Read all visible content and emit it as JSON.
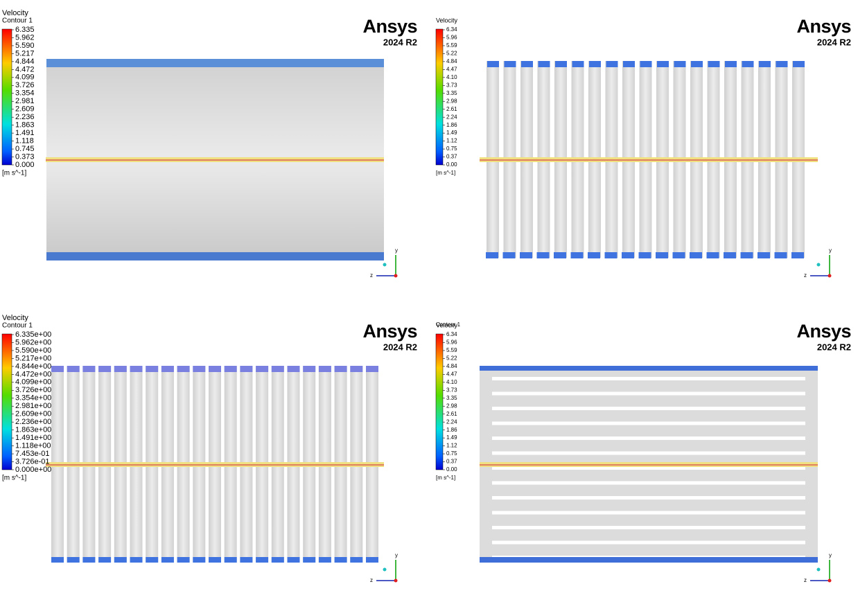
{
  "panels": [
    {
      "legend": {
        "title": "Velocity",
        "subtitle": "Contour 1",
        "labels": [
          "6.335",
          "5.962",
          "5.590",
          "5.217",
          "4.844",
          "4.472",
          "4.099",
          "3.726",
          "3.354",
          "2.981",
          "2.609",
          "2.236",
          "1.863",
          "1.491",
          "1.118",
          "0.745",
          "0.373",
          "0.000"
        ],
        "unit": "[m s^-1]"
      },
      "logo": "Ansys",
      "version": "2024 R2",
      "axes": {
        "y": "y",
        "z": "z"
      }
    },
    {
      "legend": {
        "title": "Velocity",
        "labels": [
          "6.34",
          "5.96",
          "5.59",
          "5.22",
          "4.84",
          "4.47",
          "4.10",
          "3.73",
          "3.35",
          "2.98",
          "2.61",
          "2.24",
          "1.86",
          "1.49",
          "1.12",
          "0.75",
          "0.37",
          "0.00"
        ],
        "unit": "[m s^-1]"
      },
      "logo": "Ansys",
      "version": "2024 R2",
      "axes": {
        "y": "y",
        "z": "z"
      }
    },
    {
      "legend": {
        "title": "Velocity",
        "subtitle": "Contour 1",
        "labels": [
          "6.335e+00",
          "5.962e+00",
          "5.590e+00",
          "5.217e+00",
          "4.844e+00",
          "4.472e+00",
          "4.099e+00",
          "3.726e+00",
          "3.354e+00",
          "2.981e+00",
          "2.609e+00",
          "2.236e+00",
          "1.863e+00",
          "1.491e+00",
          "1.118e+00",
          "7.453e-01",
          "3.726e-01",
          "0.000e+00"
        ],
        "unit": "[m s^-1]"
      },
      "logo": "Ansys",
      "version": "2024 R2",
      "axes": {
        "y": "y",
        "z": "z"
      }
    },
    {
      "legend": {
        "title": "Velocity",
        "subtitle": "Contour 1",
        "labels": [
          "6.34",
          "5.96",
          "5.59",
          "5.22",
          "4.84",
          "4.47",
          "4.10",
          "3.73",
          "3.35",
          "2.98",
          "2.61",
          "2.24",
          "1.86",
          "1.49",
          "1.12",
          "0.75",
          "0.37",
          "0.00"
        ],
        "unit": "[m s^-1]"
      },
      "logo": "Ansys",
      "version": "2024 R2",
      "axes": {
        "y": "y",
        "z": "z"
      }
    }
  ]
}
